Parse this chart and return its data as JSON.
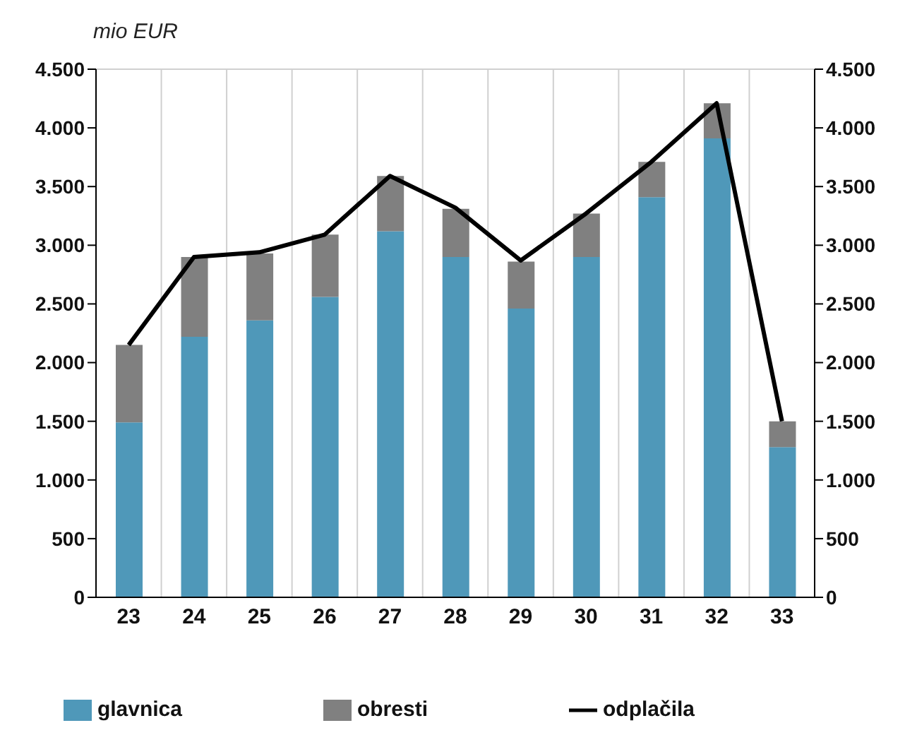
{
  "chart_data": {
    "type": "bar",
    "ylabel": "mio EUR",
    "categories": [
      "23",
      "24",
      "25",
      "26",
      "27",
      "28",
      "29",
      "30",
      "31",
      "32",
      "33"
    ],
    "stacked": true,
    "series": [
      {
        "name": "glavnica",
        "color": "#4f98b9",
        "values": [
          1490,
          2220,
          2360,
          2560,
          3120,
          2900,
          2460,
          2900,
          3410,
          3910,
          1280
        ]
      },
      {
        "name": "obresti",
        "color": "#808080",
        "values": [
          660,
          680,
          570,
          530,
          470,
          410,
          400,
          370,
          300,
          300,
          220
        ]
      },
      {
        "name": "odplačila",
        "type": "line",
        "color": "#000000",
        "values": [
          2150,
          2900,
          2940,
          3090,
          3590,
          3320,
          2870,
          3270,
          3710,
          4210,
          1500
        ]
      }
    ],
    "ylim": [
      0,
      4500
    ],
    "yticks": [
      0,
      {
        "value": 500,
        "label": "500"
      },
      {
        "value": 1000,
        "label": "1.000"
      },
      {
        "value": 1500,
        "label": "1.500"
      },
      {
        "value": 2000,
        "label": "2.000"
      },
      {
        "value": 2500,
        "label": "2.500"
      },
      {
        "value": 3000,
        "label": "3.000"
      },
      {
        "value": 3500,
        "label": "3.500"
      },
      {
        "value": 4000,
        "label": "4.000"
      },
      {
        "value": 4500,
        "label": "4.500"
      }
    ],
    "y2lim": [
      0,
      4500
    ],
    "y2ticks": [
      0,
      {
        "value": 500,
        "label": "500"
      },
      {
        "value": 1000,
        "label": "1.000"
      },
      {
        "value": 1500,
        "label": "1.500"
      },
      {
        "value": 2000,
        "label": "2.000"
      },
      {
        "value": 2500,
        "label": "2.500"
      },
      {
        "value": 3000,
        "label": "3.000"
      },
      {
        "value": 3500,
        "label": "3.500"
      },
      {
        "value": 4000,
        "label": "4.000"
      },
      {
        "value": 4500,
        "label": "4.500"
      }
    ],
    "grid": true,
    "legend": "bottom",
    "marker": "none"
  }
}
